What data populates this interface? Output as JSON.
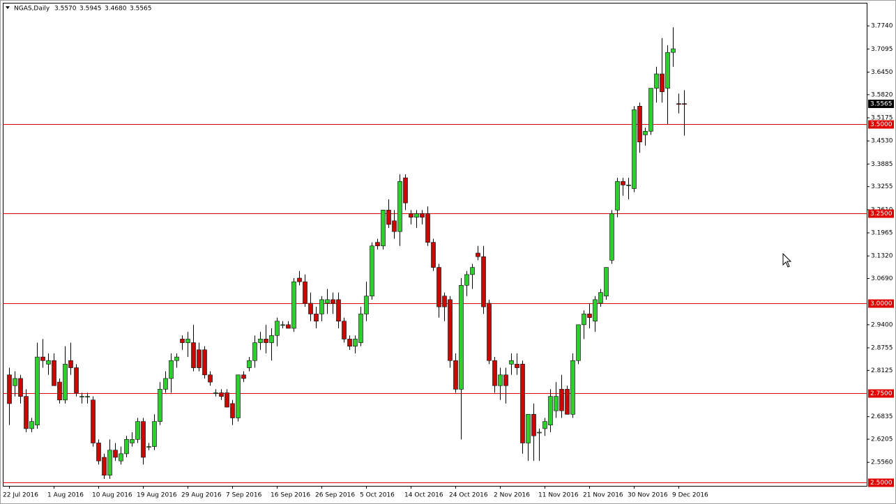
{
  "chart_data": {
    "type": "candlestick",
    "title": "NGAS,Daily",
    "quote": [
      "3.5570",
      "3.5945",
      "3.4680",
      "3.5565"
    ],
    "categories": [
      "22 Jul 2016",
      null,
      null,
      null,
      null,
      null,
      null,
      null,
      "1 Aug 2016",
      null,
      null,
      null,
      null,
      null,
      null,
      null,
      "10 Aug 2016",
      null,
      null,
      null,
      null,
      null,
      null,
      null,
      "19 Aug 2016",
      null,
      null,
      null,
      null,
      null,
      null,
      null,
      "29 Aug 2016",
      null,
      null,
      null,
      null,
      null,
      null,
      null,
      "7 Sep 2016",
      null,
      null,
      null,
      null,
      null,
      null,
      null,
      "16 Sep 2016",
      null,
      null,
      null,
      null,
      null,
      null,
      null,
      "26 Sep 2016",
      null,
      null,
      null,
      null,
      null,
      null,
      null,
      "5 Oct 2016",
      null,
      null,
      null,
      null,
      null,
      null,
      null,
      "14 Oct 2016",
      null,
      null,
      null,
      null,
      null,
      null,
      null,
      "24 Oct 2016",
      null,
      null,
      null,
      null,
      null,
      null,
      null,
      "2 Nov 2016",
      null,
      null,
      null,
      null,
      null,
      null,
      null,
      "11 Nov 2016",
      null,
      null,
      null,
      null,
      null,
      null,
      null,
      "21 Nov 2016",
      null,
      null,
      null,
      null,
      null,
      null,
      null,
      "30 Nov 2016",
      null,
      null,
      null,
      null,
      null,
      null,
      null,
      "9 Dec 2016",
      null
    ],
    "open": [
      2.8,
      2.77,
      2.79,
      2.74,
      2.65,
      2.66,
      2.85,
      2.83,
      2.84,
      2.78,
      2.73,
      2.84,
      2.82,
      2.74,
      2.74,
      2.73,
      2.61,
      2.57,
      2.52,
      2.59,
      2.56,
      2.58,
      2.61,
      2.62,
      2.67,
      2.6,
      2.6,
      2.67,
      2.76,
      2.79,
      2.84,
      2.9,
      2.89,
      2.89,
      2.87,
      2.87,
      2.8,
      2.75,
      2.75,
      2.75,
      2.72,
      2.68,
      2.8,
      2.82,
      2.84,
      2.89,
      2.9,
      2.89,
      2.91,
      2.94,
      2.94,
      2.93,
      3.07,
      3.06,
      3.0,
      2.97,
      2.97,
      3.0,
      3.01,
      3.01,
      2.95,
      2.9,
      2.88,
      2.89,
      2.97,
      3.02,
      3.17,
      3.16,
      3.26,
      3.23,
      3.2,
      3.35,
      3.25,
      3.24,
      3.25,
      3.25,
      3.17,
      3.1,
      3.02,
      3.01,
      2.84,
      2.76,
      3.05,
      3.08,
      3.14,
      3.13,
      3.0,
      2.84,
      2.77,
      2.8,
      2.83,
      2.83,
      2.83,
      2.61,
      2.69,
      2.64,
      2.65,
      2.66,
      2.7,
      2.76,
      2.76,
      2.69,
      2.84,
      2.94,
      2.97,
      2.95,
      3.0,
      3.02,
      3.12,
      3.26,
      3.34,
      3.33,
      3.32,
      3.55,
      3.47,
      3.48,
      3.6,
      3.64,
      3.6,
      3.7,
      3.557,
      3.557
    ],
    "high": [
      2.82,
      2.81,
      2.8,
      2.76,
      2.68,
      2.89,
      2.9,
      2.86,
      2.86,
      2.79,
      2.88,
      2.89,
      2.83,
      2.75,
      2.75,
      2.74,
      2.62,
      2.58,
      2.62,
      2.61,
      2.6,
      2.63,
      2.64,
      2.68,
      2.68,
      2.61,
      2.69,
      2.78,
      2.81,
      2.86,
      2.86,
      2.91,
      2.92,
      2.94,
      2.89,
      2.88,
      2.81,
      2.76,
      2.76,
      2.76,
      2.73,
      2.8,
      2.81,
      2.85,
      2.91,
      2.92,
      2.94,
      2.93,
      2.96,
      2.95,
      2.95,
      3.07,
      3.09,
      3.08,
      3.03,
      2.99,
      3.02,
      3.04,
      3.03,
      3.03,
      2.96,
      2.91,
      2.91,
      2.99,
      3.06,
      3.17,
      3.18,
      3.26,
      3.29,
      3.26,
      3.36,
      3.36,
      3.26,
      3.26,
      3.26,
      3.27,
      3.18,
      3.11,
      3.03,
      3.02,
      2.86,
      3.07,
      3.09,
      3.11,
      3.16,
      3.16,
      3.01,
      2.85,
      2.82,
      2.82,
      2.86,
      2.86,
      2.84,
      2.69,
      2.72,
      2.65,
      2.68,
      2.76,
      2.78,
      2.8,
      2.77,
      2.86,
      2.94,
      2.98,
      3.0,
      3.02,
      3.04,
      3.1,
      3.26,
      3.35,
      3.35,
      3.35,
      3.55,
      3.56,
      3.49,
      3.6,
      3.66,
      3.74,
      3.72,
      3.77,
      3.585,
      3.5945
    ],
    "low": [
      2.66,
      2.74,
      2.72,
      2.64,
      2.64,
      2.65,
      2.82,
      2.8,
      2.77,
      2.72,
      2.72,
      2.8,
      2.74,
      2.72,
      2.72,
      2.6,
      2.55,
      2.51,
      2.51,
      2.56,
      2.55,
      2.57,
      2.6,
      2.61,
      2.55,
      2.59,
      2.59,
      2.66,
      2.75,
      2.75,
      2.82,
      2.87,
      2.85,
      2.81,
      2.81,
      2.79,
      2.77,
      2.74,
      2.73,
      2.71,
      2.66,
      2.67,
      2.78,
      2.81,
      2.82,
      2.87,
      2.86,
      2.84,
      2.88,
      2.93,
      2.93,
      2.92,
      3.05,
      2.99,
      2.95,
      2.93,
      2.95,
      2.97,
      2.97,
      2.93,
      2.89,
      2.87,
      2.86,
      2.88,
      2.95,
      3.01,
      3.15,
      3.15,
      3.21,
      3.18,
      3.16,
      3.26,
      3.22,
      3.21,
      3.22,
      3.16,
      3.09,
      2.96,
      2.95,
      2.82,
      2.75,
      2.62,
      3.02,
      3.04,
      3.12,
      2.97,
      2.83,
      2.75,
      2.73,
      2.72,
      2.8,
      2.8,
      2.58,
      2.56,
      2.56,
      2.56,
      2.63,
      2.64,
      2.68,
      2.68,
      2.69,
      2.68,
      2.83,
      2.9,
      2.93,
      2.92,
      2.99,
      3.01,
      3.11,
      3.24,
      3.3,
      3.29,
      3.31,
      3.42,
      3.44,
      3.47,
      3.56,
      3.56,
      3.5,
      3.66,
      3.53,
      3.468
    ],
    "close": [
      2.72,
      2.79,
      2.74,
      2.65,
      2.67,
      2.85,
      2.84,
      2.84,
      2.77,
      2.73,
      2.83,
      2.82,
      2.75,
      2.74,
      2.74,
      2.61,
      2.56,
      2.52,
      2.59,
      2.57,
      2.58,
      2.62,
      2.62,
      2.67,
      2.57,
      2.6,
      2.67,
      2.76,
      2.79,
      2.84,
      2.85,
      2.89,
      2.9,
      2.82,
      2.82,
      2.8,
      2.78,
      2.75,
      2.74,
      2.71,
      2.68,
      2.8,
      2.79,
      2.84,
      2.89,
      2.9,
      2.89,
      2.91,
      2.95,
      2.94,
      2.93,
      3.06,
      3.06,
      3.0,
      2.97,
      2.95,
      3.01,
      3.01,
      3.0,
      2.95,
      2.9,
      2.88,
      2.9,
      2.97,
      3.02,
      3.16,
      3.16,
      3.26,
      3.22,
      3.2,
      3.34,
      3.28,
      3.24,
      3.25,
      3.24,
      3.17,
      3.1,
      2.99,
      2.99,
      2.84,
      2.76,
      3.05,
      3.08,
      3.1,
      3.13,
      2.99,
      2.84,
      2.77,
      2.8,
      2.77,
      2.84,
      2.82,
      2.61,
      2.69,
      2.63,
      2.64,
      2.67,
      2.74,
      2.74,
      2.7,
      2.69,
      2.84,
      2.94,
      2.97,
      2.96,
      3.01,
      3.03,
      3.1,
      3.25,
      3.34,
      3.33,
      3.33,
      3.54,
      3.45,
      3.48,
      3.6,
      3.64,
      3.59,
      3.7,
      3.71,
      3.555,
      3.5565
    ],
    "up_color": "#2ad22a",
    "down_color": "#d40000",
    "wick_color": "#000000",
    "ylim": [
      2.4903,
      3.8385
    ],
    "yticks": [
      {
        "value": 3.774,
        "label": "3.7740"
      },
      {
        "value": 3.7095,
        "label": "3.7095"
      },
      {
        "value": 3.645,
        "label": "3.6450"
      },
      {
        "value": 3.582,
        "label": "3.5820"
      },
      {
        "value": 3.5175,
        "label": "3.5175"
      },
      {
        "value": 3.453,
        "label": "3.4530"
      },
      {
        "value": 3.3885,
        "label": "3.3885"
      },
      {
        "value": 3.3255,
        "label": "3.3255"
      },
      {
        "value": 3.261,
        "label": "3.2610"
      },
      {
        "value": 3.1965,
        "label": "3.1965"
      },
      {
        "value": 3.132,
        "label": "3.1320"
      },
      {
        "value": 3.069,
        "label": "3.0690"
      },
      {
        "value": 2.94,
        "label": "2.9400"
      },
      {
        "value": 2.8755,
        "label": "2.8755"
      },
      {
        "value": 2.8125,
        "label": "2.8125"
      },
      {
        "value": 2.6835,
        "label": "2.6835"
      },
      {
        "value": 2.6205,
        "label": "2.6205"
      },
      {
        "value": 2.556,
        "label": "2.5560"
      }
    ],
    "hlines": [
      {
        "value": 3.5,
        "label": "3.5000"
      },
      {
        "value": 3.25,
        "label": "3.2500"
      },
      {
        "value": 3.0,
        "label": "3.0000"
      },
      {
        "value": 2.75,
        "label": "2.7500"
      },
      {
        "value": 2.5,
        "label": "2.5000"
      }
    ],
    "hline_color": "#e00000",
    "price_label": {
      "value": 3.5565,
      "label": "3.5565"
    }
  }
}
